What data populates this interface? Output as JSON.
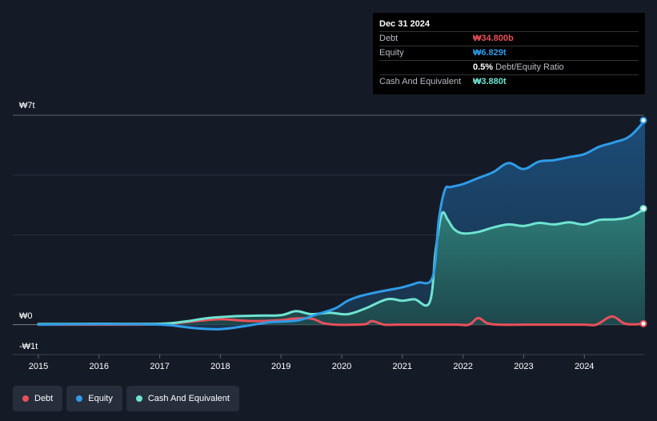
{
  "tooltip": {
    "date": "Dec 31 2024",
    "rows": [
      {
        "label": "Debt",
        "value": "₩34.800b",
        "color": "#e9505a"
      },
      {
        "label": "Equity",
        "value": "₩6.829t",
        "color": "#2e9be8"
      },
      {
        "label": "",
        "value": "0.5%",
        "extra": "Debt/Equity Ratio",
        "color": "#ffffff"
      },
      {
        "label": "Cash And Equivalent",
        "value": "₩3.880t",
        "color": "#6fe3d1"
      }
    ]
  },
  "legend": [
    {
      "label": "Debt",
      "color": "#e9505a"
    },
    {
      "label": "Equity",
      "color": "#2e9be8"
    },
    {
      "label": "Cash And Equivalent",
      "color": "#6fe3d1"
    }
  ],
  "chart_data": {
    "type": "area",
    "ylabels": {
      "top": "₩7t",
      "zero": "₩0",
      "bottom": "-₩1t"
    },
    "ylim": [
      -1,
      7
    ],
    "xlim": [
      2015,
      2025
    ],
    "xticks": [
      "2015",
      "2016",
      "2017",
      "2018",
      "2019",
      "2020",
      "2021",
      "2022",
      "2023",
      "2024"
    ],
    "series": [
      {
        "name": "Equity",
        "color": "#2e9be8",
        "x": [
          2015.0,
          2016.0,
          2017.0,
          2017.3,
          2017.6,
          2018.0,
          2018.4,
          2018.8,
          2019.0,
          2019.3,
          2019.6,
          2019.9,
          2020.1,
          2020.3,
          2020.5,
          2020.75,
          2021.0,
          2021.25,
          2021.5,
          2021.6,
          2021.7,
          2021.8,
          2022.0,
          2022.25,
          2022.5,
          2022.75,
          2023.0,
          2023.25,
          2023.5,
          2023.75,
          2024.0,
          2024.25,
          2024.5,
          2024.75,
          2025.0
        ],
        "values": [
          0.0,
          0.02,
          0.0,
          -0.05,
          -0.12,
          -0.15,
          -0.05,
          0.08,
          0.1,
          0.15,
          0.35,
          0.55,
          0.8,
          0.95,
          1.05,
          1.15,
          1.25,
          1.4,
          1.6,
          3.5,
          4.5,
          4.6,
          4.7,
          4.9,
          5.1,
          5.4,
          5.2,
          5.45,
          5.5,
          5.6,
          5.7,
          5.95,
          6.1,
          6.3,
          6.829
        ]
      },
      {
        "name": "Cash And Equivalent",
        "color": "#6fe3d1",
        "x": [
          2015.0,
          2016.0,
          2017.0,
          2017.4,
          2017.8,
          2018.2,
          2018.6,
          2019.0,
          2019.25,
          2019.5,
          2019.8,
          2020.1,
          2020.4,
          2020.75,
          2021.0,
          2021.2,
          2021.45,
          2021.55,
          2021.65,
          2021.75,
          2021.85,
          2022.0,
          2022.25,
          2022.5,
          2022.75,
          2023.0,
          2023.25,
          2023.5,
          2023.75,
          2024.0,
          2024.25,
          2024.5,
          2024.75,
          2025.0
        ],
        "values": [
          0.02,
          0.03,
          0.03,
          0.1,
          0.22,
          0.28,
          0.3,
          0.32,
          0.45,
          0.35,
          0.4,
          0.35,
          0.55,
          0.85,
          0.8,
          0.85,
          0.75,
          2.5,
          3.7,
          3.5,
          3.2,
          3.05,
          3.1,
          3.25,
          3.35,
          3.3,
          3.4,
          3.35,
          3.42,
          3.35,
          3.5,
          3.52,
          3.6,
          3.88
        ]
      },
      {
        "name": "Debt",
        "color": "#e9505a",
        "x": [
          2015.0,
          2016.0,
          2017.0,
          2017.5,
          2018.0,
          2018.5,
          2019.0,
          2019.2,
          2019.5,
          2019.7,
          2019.9,
          2020.2,
          2020.4,
          2020.5,
          2020.7,
          2020.9,
          2021.0,
          2021.5,
          2021.9,
          2022.1,
          2022.25,
          2022.4,
          2022.6,
          2023.0,
          2023.5,
          2024.0,
          2024.2,
          2024.45,
          2024.65,
          2024.8,
          2025.0
        ],
        "values": [
          0.0,
          0.0,
          0.01,
          0.1,
          0.18,
          0.12,
          0.15,
          0.2,
          0.2,
          0.05,
          0.0,
          0.0,
          0.02,
          0.12,
          0.0,
          0.0,
          0.0,
          0.0,
          0.0,
          0.0,
          0.22,
          0.05,
          0.0,
          0.0,
          0.0,
          0.0,
          0.0,
          0.27,
          0.05,
          0.01,
          0.035
        ]
      }
    ]
  }
}
